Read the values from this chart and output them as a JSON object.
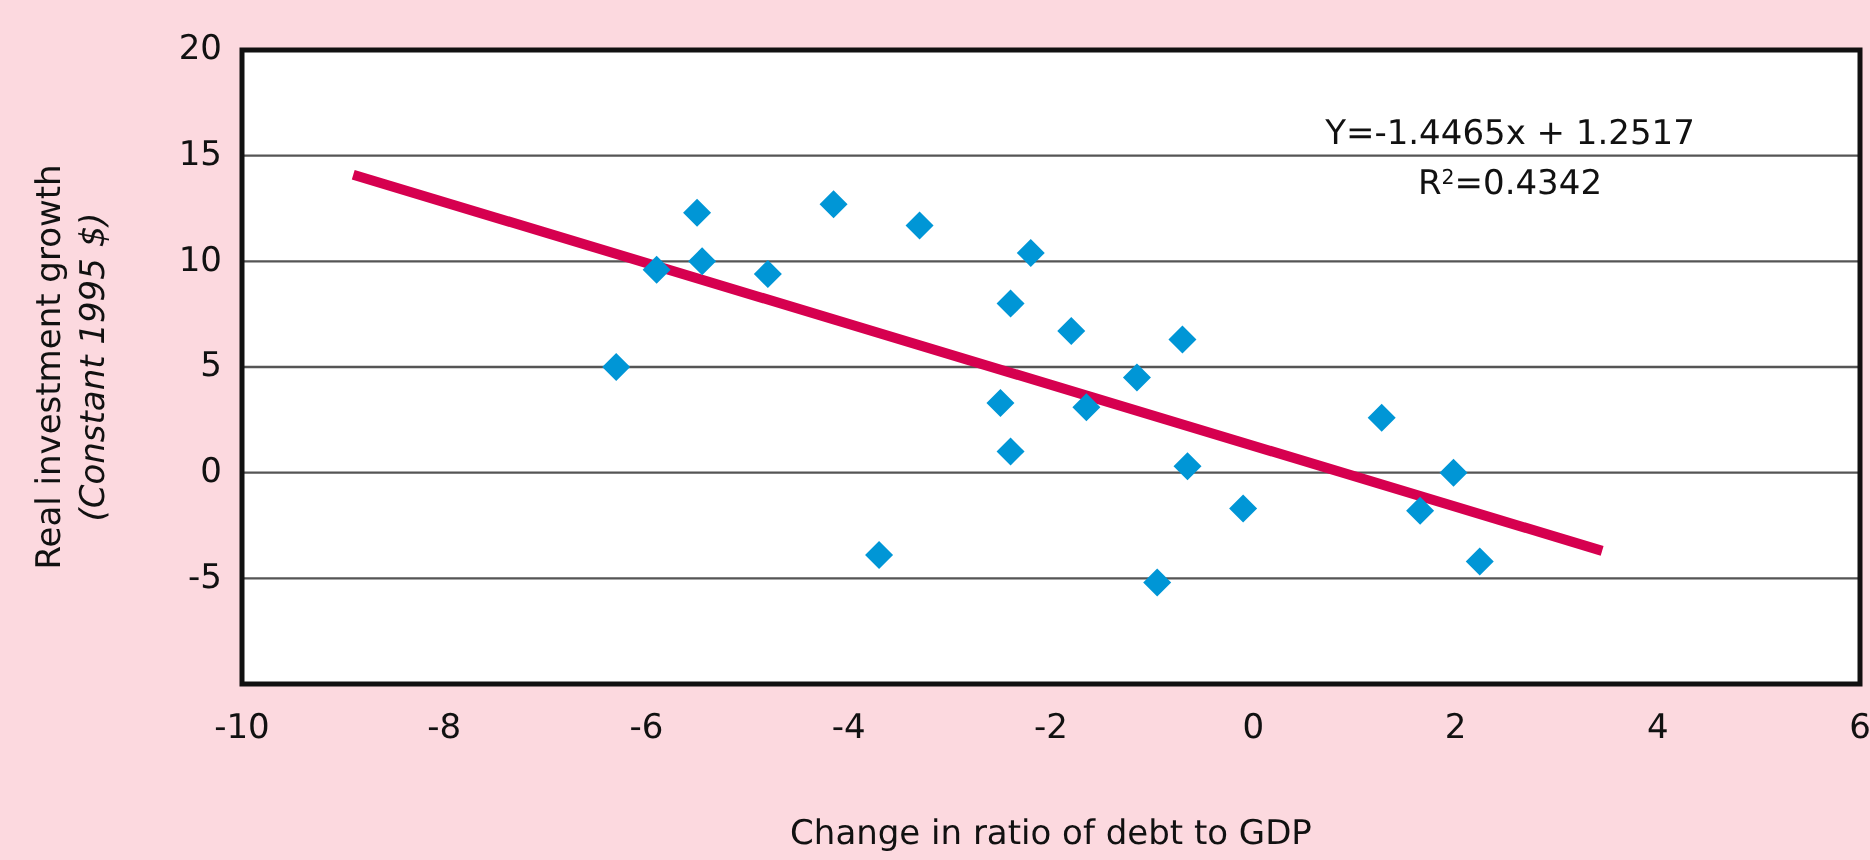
{
  "chart_data": {
    "type": "scatter",
    "xlabel": "Change in ratio of debt to GDP",
    "ylabel": "Real investment growth\n(Constant 1995 $)",
    "xlim": [
      -10,
      6
    ],
    "xticks": [
      -10,
      -8,
      -6,
      -4,
      -2,
      0,
      2,
      4,
      6
    ],
    "ylim": [
      -10,
      20
    ],
    "yticks": [
      -5,
      0,
      5,
      10,
      15,
      20
    ],
    "grid": "y",
    "series": [
      {
        "color": "#0096d6",
        "marker": "diamond",
        "x": [
          -6.3,
          -5.9,
          -5.5,
          -5.45,
          -4.8,
          -4.15,
          -3.7,
          -3.3,
          -2.2,
          -2.4,
          -1.8,
          -0.7,
          -1.15,
          -2.5,
          -1.65,
          -2.4,
          -0.65,
          -0.1,
          1.27,
          1.98,
          1.65,
          2.24,
          -0.95
        ],
        "values": [
          5.0,
          9.6,
          12.3,
          10.0,
          9.4,
          12.7,
          -3.9,
          11.7,
          10.4,
          8.0,
          6.7,
          6.3,
          4.5,
          3.3,
          3.1,
          1.0,
          0.3,
          -1.7,
          2.6,
          0.0,
          -1.8,
          -4.2,
          -5.2
        ]
      },
      {
        "type": "line",
        "color": "#d6004f",
        "marker": "none",
        "line_style": "solid",
        "x": [
          -8.9,
          3.45
        ],
        "values": [
          14.1,
          -3.7
        ]
      }
    ],
    "annotations": [
      "Y=-1.4465x + 1.2517",
      "R$^{2}$=0.4342"
    ]
  }
}
